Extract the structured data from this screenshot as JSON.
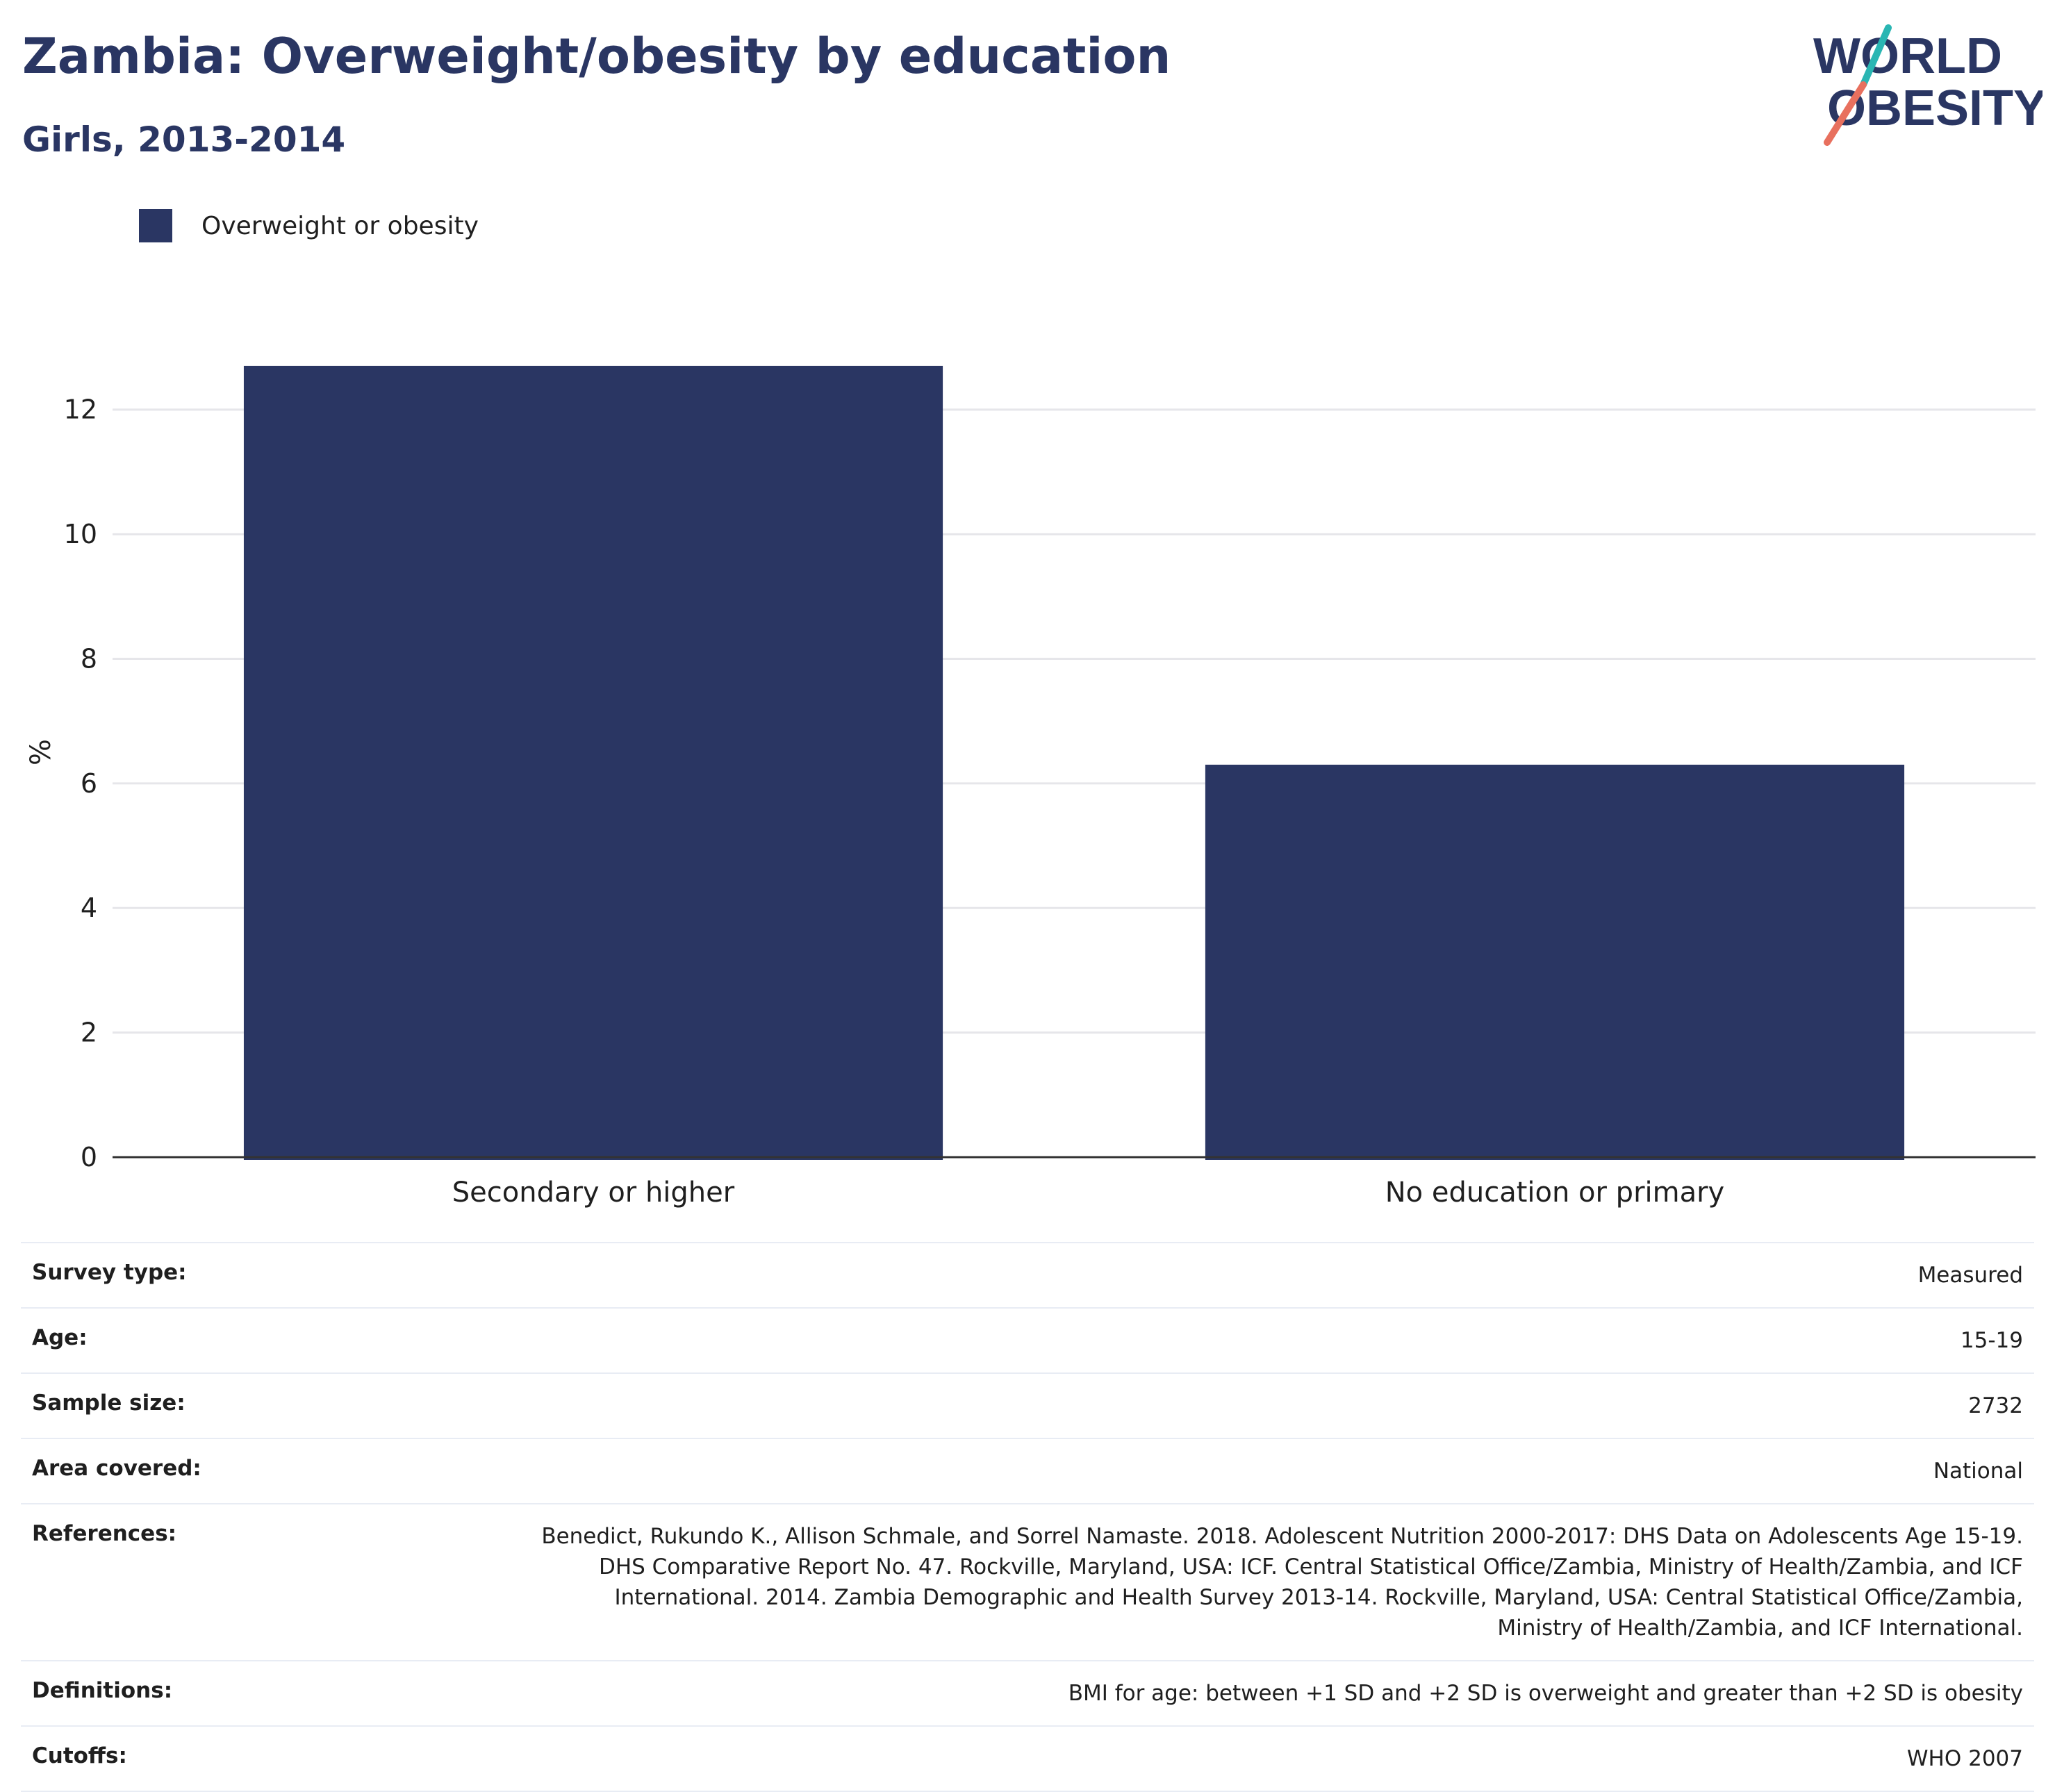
{
  "header": {
    "title": "Zambia: Overweight/obesity by education",
    "subtitle": "Girls, 2013-2014"
  },
  "logo": {
    "line1": "WORLD",
    "line2": "OBESITY",
    "colors": {
      "text": "#2a3663",
      "teal": "#2ab6b3",
      "coral": "#e8705e"
    }
  },
  "legend": {
    "label": "Overweight or obesity",
    "color": "#2a3663"
  },
  "chart_data": {
    "type": "bar",
    "categories": [
      "Secondary or higher",
      "No education or primary"
    ],
    "series": [
      {
        "name": "Overweight or obesity",
        "values": [
          12.7,
          6.3
        ],
        "color": "#2a3663"
      }
    ],
    "ylabel": "%",
    "ylim": [
      0,
      13
    ],
    "yticks": [
      0,
      2,
      4,
      6,
      8,
      10,
      12
    ],
    "grid": true,
    "legend_position": "top-left"
  },
  "meta": [
    {
      "key": "Survey type:",
      "value": "Measured"
    },
    {
      "key": "Age:",
      "value": "15-19"
    },
    {
      "key": "Sample size:",
      "value": "2732"
    },
    {
      "key": "Area covered:",
      "value": "National"
    },
    {
      "key": "References:",
      "value": "Benedict, Rukundo K., Allison Schmale, and Sorrel Namaste. 2018. Adolescent Nutrition 2000-2017: DHS Data on Adolescents Age 15-19. DHS Comparative Report No. 47. Rockville, Maryland, USA: ICF. Central Statistical Office/Zambia, Ministry of Health/Zambia, and ICF International. 2014. Zambia Demographic and Health Survey 2013-14. Rockville, Maryland, USA: Central Statistical Office/Zambia, Ministry of Health/Zambia, and ICF International."
    },
    {
      "key": "Definitions:",
      "value": "BMI for age: between +1 SD and +2 SD is overweight and greater than +2 SD is obesity"
    },
    {
      "key": "Cutoffs:",
      "value": "WHO 2007"
    }
  ]
}
